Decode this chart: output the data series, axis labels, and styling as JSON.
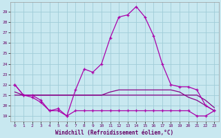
{
  "x": [
    0,
    1,
    2,
    3,
    4,
    5,
    6,
    7,
    8,
    9,
    10,
    11,
    12,
    13,
    14,
    15,
    16,
    17,
    18,
    19,
    20,
    21,
    22,
    23
  ],
  "line_main": [
    22,
    21,
    21,
    20.5,
    19.5,
    19.5,
    19,
    21.5,
    23.5,
    23.2,
    24,
    26.5,
    28.5,
    28.7,
    29.5,
    28.5,
    26.7,
    24,
    22,
    21.8,
    21.8,
    21.5,
    20,
    19.5
  ],
  "line_zigzag": [
    22,
    21,
    20.8,
    20.3,
    19.5,
    19.7,
    19,
    19.5,
    19.5,
    19.5,
    19.5,
    19.5,
    19.5,
    19.5,
    19.5,
    19.5,
    19.5,
    19.5,
    19.5,
    19.5,
    19.5,
    19,
    19,
    19.5
  ],
  "line_mid1": [
    21,
    21,
    21,
    21,
    21,
    21,
    21,
    21,
    21,
    21,
    21,
    21.3,
    21.5,
    21.5,
    21.5,
    21.5,
    21.5,
    21.5,
    21.5,
    21.3,
    20.8,
    20.5,
    20,
    19.5
  ],
  "line_mid2": [
    21.3,
    21,
    21,
    21,
    21,
    21,
    21,
    21,
    21,
    21,
    21,
    21,
    21,
    21,
    21,
    21,
    21,
    21,
    21,
    21,
    21,
    21,
    20.5,
    19.8
  ],
  "bg_color": "#c8e8f0",
  "line_color_main": "#aa00aa",
  "line_color_flat": "#880088",
  "grid_color": "#a0ccd8",
  "xlabel": "Windchill (Refroidissement éolien,°C)",
  "ylabel_ticks": [
    19,
    20,
    21,
    22,
    23,
    24,
    25,
    26,
    27,
    28,
    29
  ],
  "xlim": [
    -0.5,
    23.5
  ],
  "ylim": [
    18.5,
    29.9
  ],
  "xticks": [
    0,
    1,
    2,
    3,
    4,
    5,
    6,
    7,
    8,
    9,
    10,
    11,
    12,
    13,
    14,
    15,
    16,
    17,
    18,
    19,
    20,
    21,
    22,
    23
  ]
}
